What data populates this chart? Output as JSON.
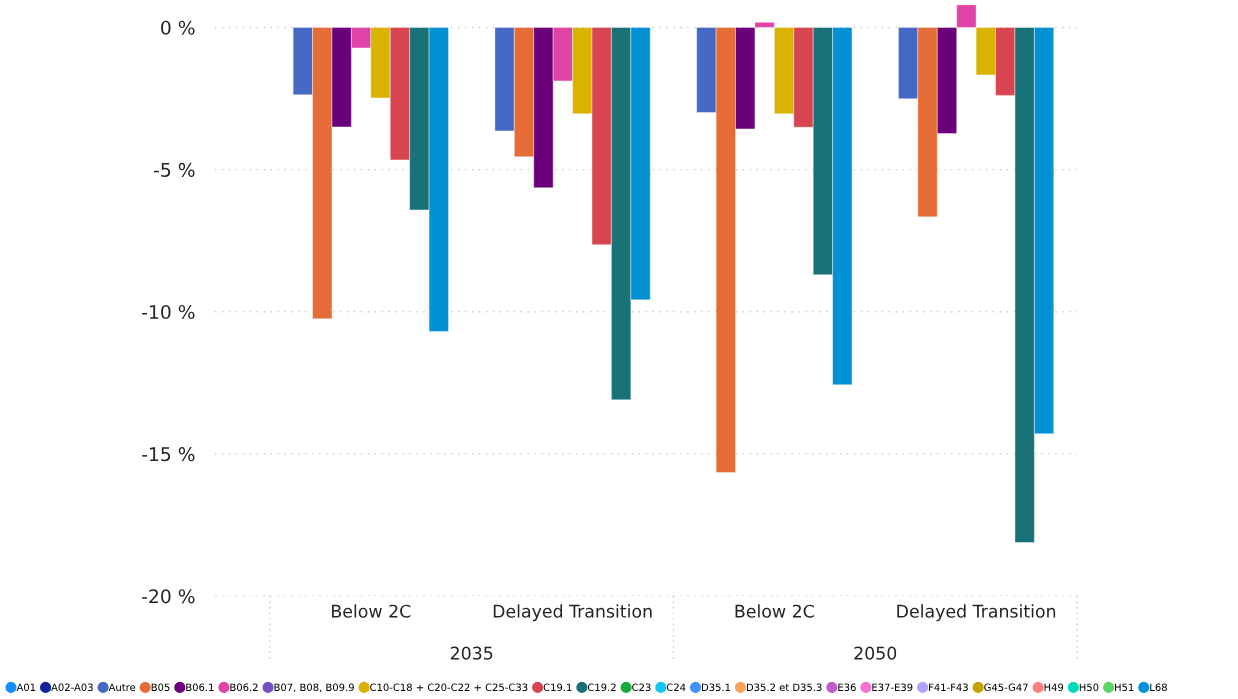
{
  "chart_data": {
    "type": "bar",
    "categories": [
      "Below 2C",
      "Delayed Transition",
      "Below 2C",
      "Delayed Transition"
    ],
    "annotations": [
      "2035",
      "2050"
    ],
    "ylim": [
      -20,
      0.8
    ],
    "yticks": [
      {
        "value": 0,
        "label": "0 %"
      },
      {
        "value": -5,
        "label": "-5 %"
      },
      {
        "value": -10,
        "label": "-10 %"
      },
      {
        "value": -15,
        "label": "-15 %"
      },
      {
        "value": -20,
        "label": "-20 %"
      }
    ],
    "grid": "y",
    "legend": "bottom",
    "marker": "circle",
    "series": [
      {
        "name": "A01",
        "color": "#118dff",
        "values": [
          null,
          null,
          null,
          null
        ]
      },
      {
        "name": "A02-A03",
        "color": "#12239e",
        "values": [
          null,
          null,
          null,
          null
        ]
      },
      {
        "name": "Autre",
        "color": "#4668c5",
        "values": [
          -2.37,
          -3.64,
          -2.99,
          -2.51
        ]
      },
      {
        "name": "B05",
        "color": "#e66c37",
        "values": [
          -10.25,
          -4.55,
          -15.66,
          -6.66
        ]
      },
      {
        "name": "B06.1",
        "color": "#6b007b",
        "values": [
          -3.5,
          -5.64,
          -3.57,
          -3.73
        ]
      },
      {
        "name": "B06.2",
        "color": "#e044a7",
        "values": [
          -0.72,
          -1.88,
          0.18,
          0.8
        ]
      },
      {
        "name": "B07, B08, B09.9",
        "color": "#744ec2",
        "values": [
          null,
          null,
          null,
          null
        ]
      },
      {
        "name": "C10-C18 + C20-C22 + C25-C33",
        "color": "#d9b300",
        "values": [
          -2.48,
          -3.04,
          -3.04,
          -1.67
        ]
      },
      {
        "name": "C19.1",
        "color": "#d64550",
        "values": [
          -4.66,
          -7.64,
          -3.51,
          -2.39
        ]
      },
      {
        "name": "C19.2",
        "color": "#197278",
        "values": [
          -6.42,
          -13.1,
          -8.7,
          -18.12
        ]
      },
      {
        "name": "C23",
        "color": "#1aab40",
        "values": [
          null,
          null,
          null,
          null
        ]
      },
      {
        "name": "C24",
        "color": "#15c6f4",
        "values": [
          null,
          null,
          null,
          null
        ]
      },
      {
        "name": "D35.1",
        "color": "#4092ff",
        "values": [
          null,
          null,
          null,
          null
        ]
      },
      {
        "name": "D35.2 et D35.3",
        "color": "#ffa058",
        "values": [
          null,
          null,
          null,
          null
        ]
      },
      {
        "name": "E36",
        "color": "#be5dc9",
        "values": [
          null,
          null,
          null,
          null
        ]
      },
      {
        "name": "E37-E39",
        "color": "#f472d0",
        "values": [
          null,
          null,
          null,
          null
        ]
      },
      {
        "name": "F41-F43",
        "color": "#b5a1ff",
        "values": [
          null,
          null,
          null,
          null
        ]
      },
      {
        "name": "G45-G47",
        "color": "#c4a200",
        "values": [
          null,
          null,
          null,
          null
        ]
      },
      {
        "name": "H49",
        "color": "#ff8080",
        "values": [
          null,
          null,
          null,
          null
        ]
      },
      {
        "name": "H50",
        "color": "#00dbbc",
        "values": [
          null,
          null,
          null,
          null
        ]
      },
      {
        "name": "H51",
        "color": "#5bd667",
        "values": [
          null,
          null,
          null,
          null
        ]
      },
      {
        "name": "L68",
        "color": "#0091d5",
        "values": [
          -10.7,
          -9.58,
          -12.57,
          -14.29
        ]
      }
    ]
  }
}
